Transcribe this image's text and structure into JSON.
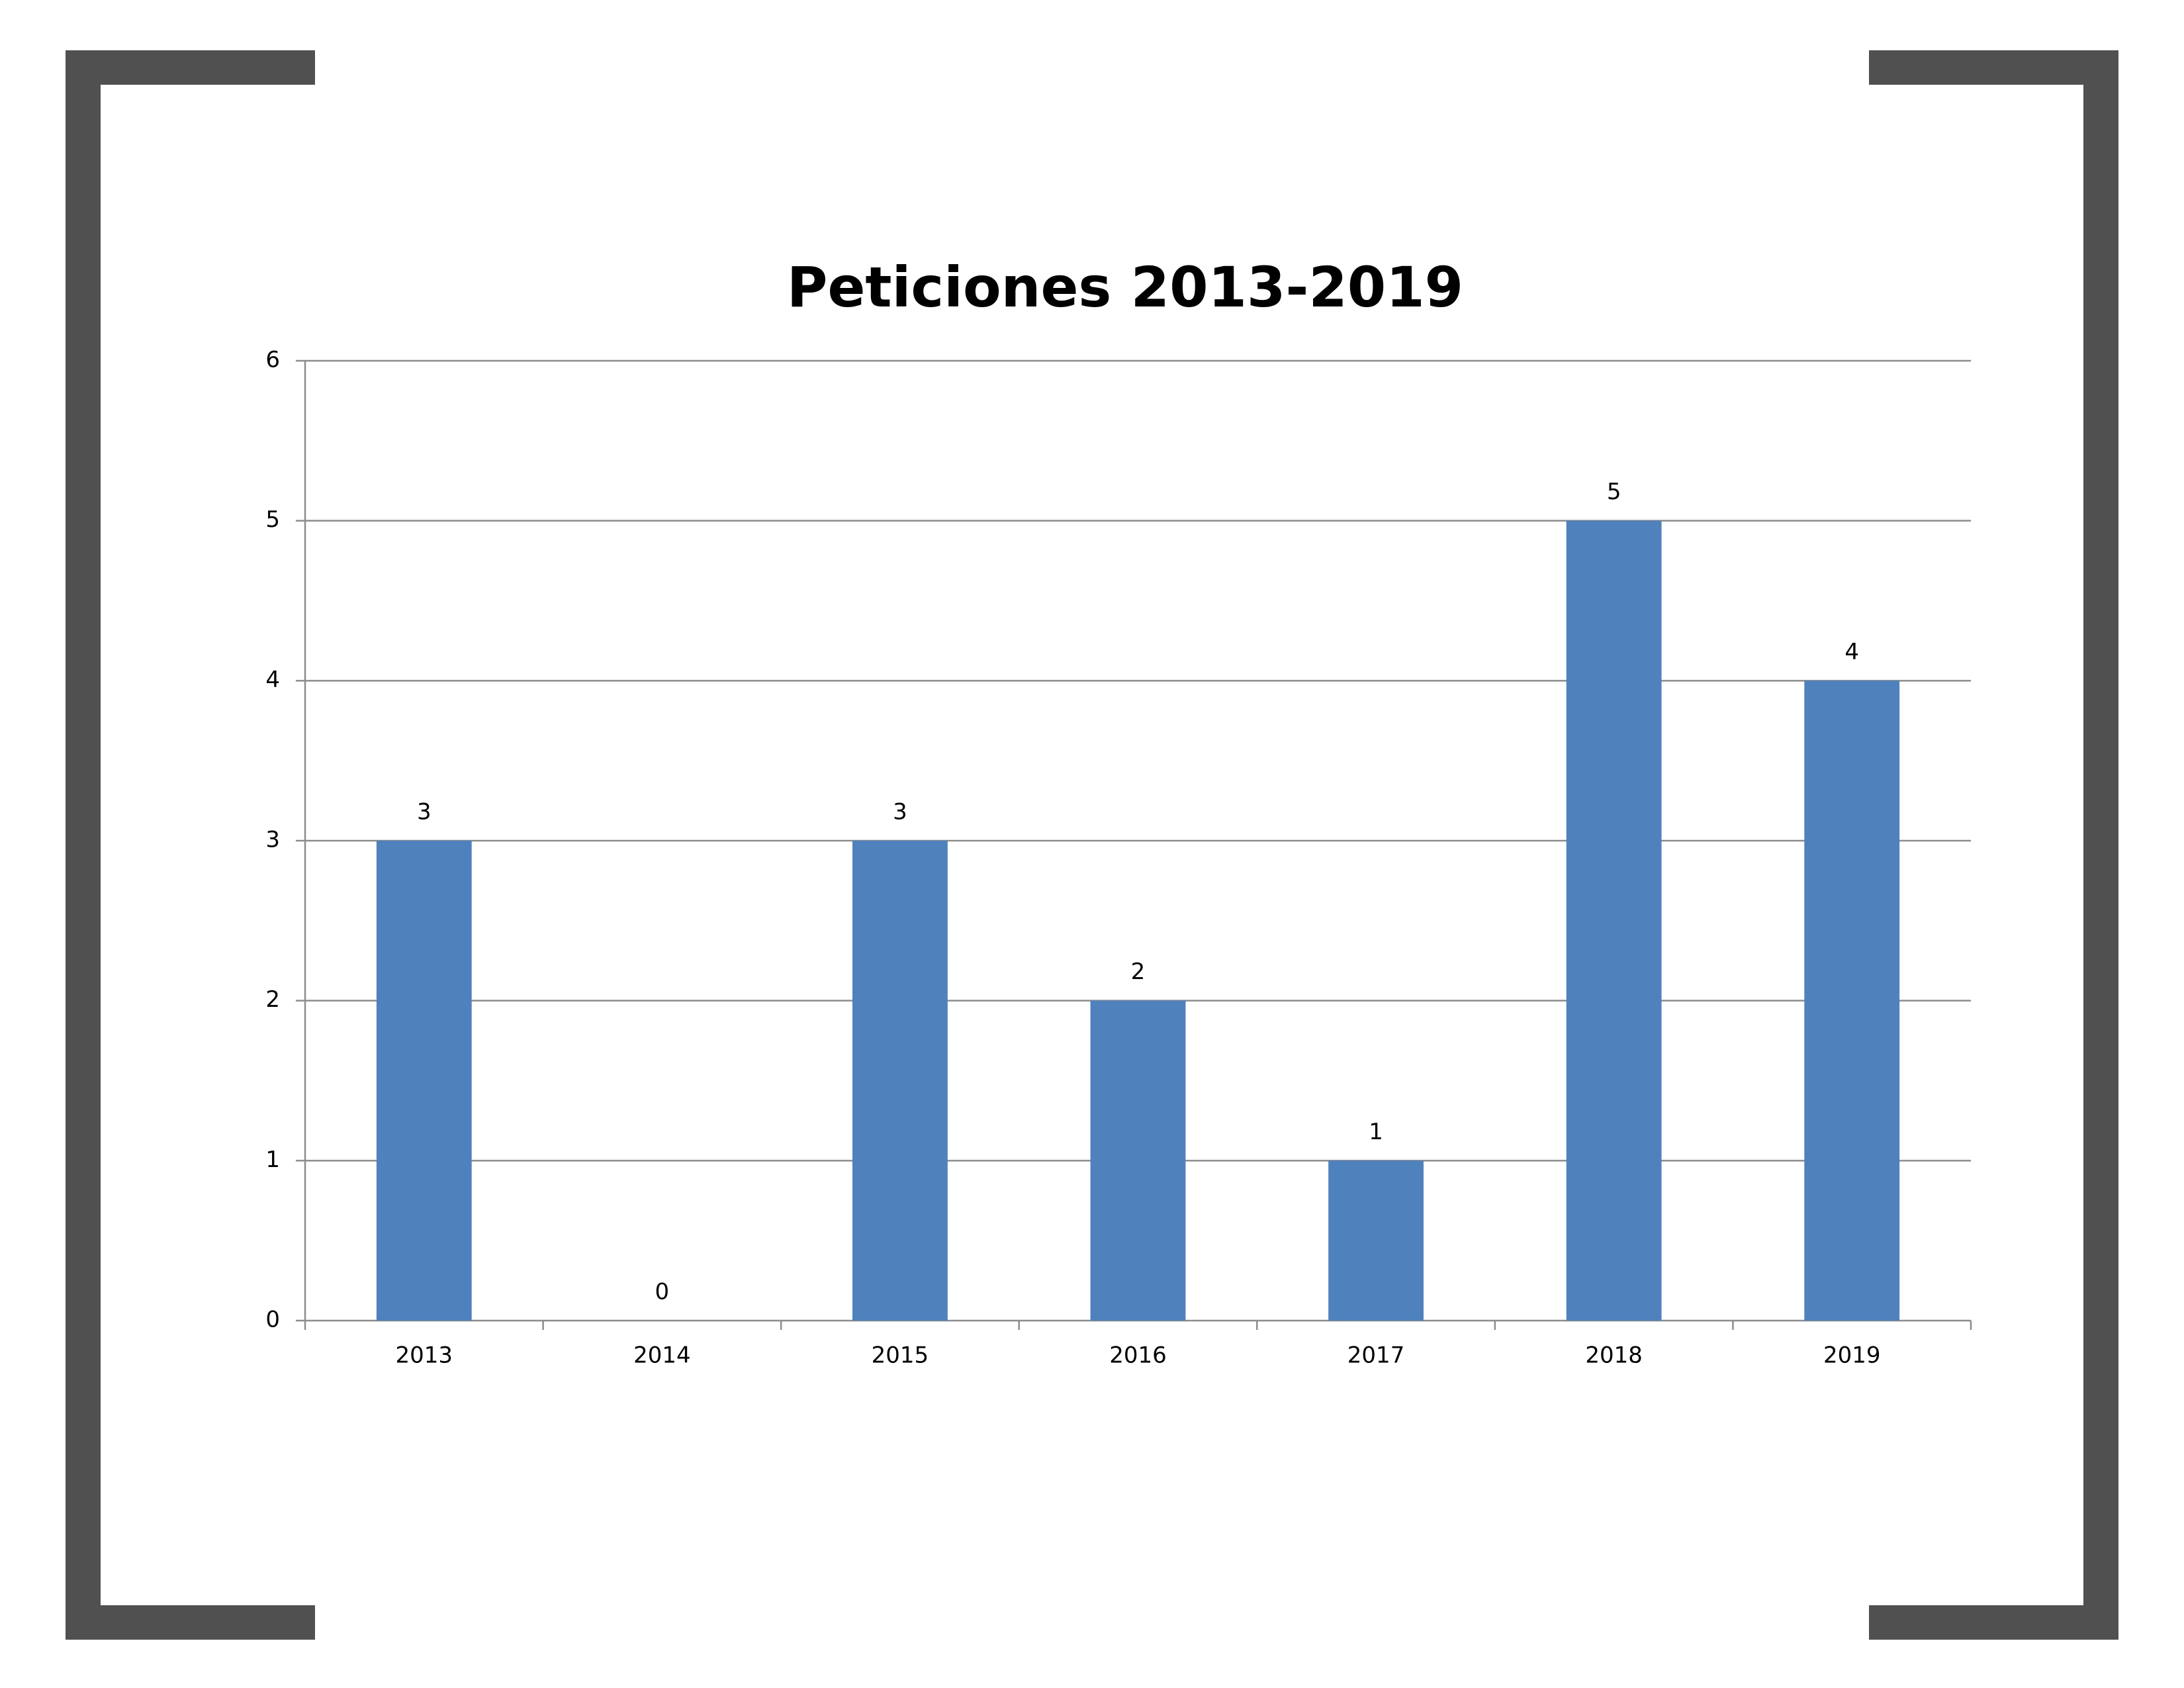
{
  "chart_data": {
    "type": "bar",
    "title": "Peticiones 2013-2019",
    "categories": [
      "2013",
      "2014",
      "2015",
      "2016",
      "2017",
      "2018",
      "2019"
    ],
    "values": [
      3,
      0,
      3,
      2,
      1,
      5,
      4
    ],
    "color": "#4f81bd",
    "ylim": [
      0,
      6
    ],
    "yticks": [
      0,
      1,
      2,
      3,
      4,
      5,
      6
    ],
    "grid": true,
    "data_labels": true
  }
}
